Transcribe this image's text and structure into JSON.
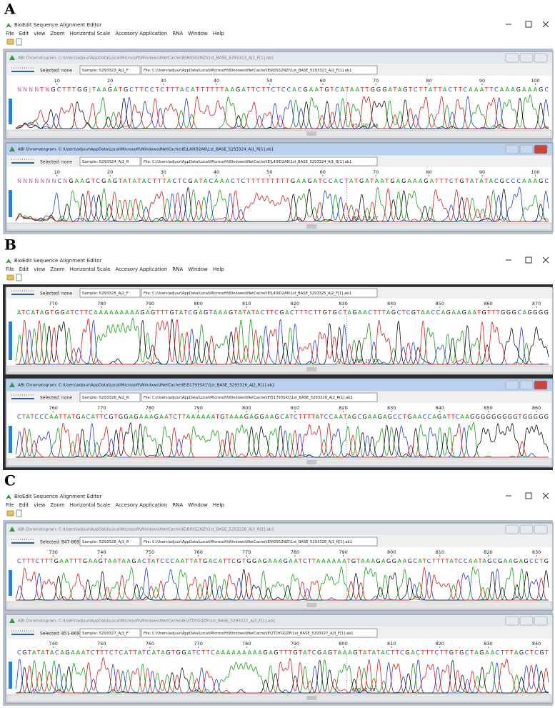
{
  "panels": [
    {
      "label": "A",
      "app_title": "BioEdit Sequence Alignment Editor",
      "menu": [
        "File",
        "Edit",
        "view",
        "Zoom",
        "Horizontal Scale",
        "Accesory Application",
        "RNA",
        "Window",
        "Help"
      ],
      "windows": [
        {
          "title": "ABI Chromatogram: C:\\Users\\adjuur\\AppData\\Local\\Microsoft\\Windows\\INetCache\\IE\\R0S52NZI\\1st_BASE_5293323_Aj1_F[1].ab1",
          "selected": "Selected: none",
          "sample": "Sample: 5293323_Aj1_F",
          "file": "File: C:\\Users\\adjuur\\AppData\\Local\\Microsoft\\Windows\\INetCache\\IE\\R0S52NZI\\1st_BASE_5293323_Aj1_F[1].ab1",
          "positions": [
            10,
            20,
            30,
            40,
            50,
            60,
            70,
            80,
            90,
            100
          ],
          "sequence": "NNNNTNGCTTTGGJTAAGATGCTTCCTCTTTACATTTTTTAAGATTCTTCTCCACGAATGTCATAATTGGGATAGTCTTATTACTTCAAATTCAAAGAAAGC",
          "status": "834_207_86"
        },
        {
          "title": "ABI Chromatogram: C:\\Users\\adjuur\\AppData\\Local\\Microsoft\\Windows\\INetCache\\IE\\L40ID2A6\\1st_BASE_5293324_Aj1_R[1].ab1",
          "selected": "Selected: none",
          "sample": "Sample: 5293324_Aj1_R",
          "file": "File: C:\\Users\\adjuur\\AppData\\Local\\Microsoft\\Windows\\INetCache\\IE\\L40ID2A6\\1st_BASE_5293324_Aj1_R[1].ab1",
          "positions": [
            10,
            20,
            30,
            40,
            50,
            60,
            70,
            80,
            90,
            100
          ],
          "sequence": "NNNNNNNCNGAAGTCGAGTATATACTTTACTCGATACAAACTCTTTTTTTTTGAAGATCCACTATGATAATGAGAAAGATTTCTGTATATACGCCCAAAGC",
          "status": "852_213_67"
        }
      ]
    },
    {
      "label": "B",
      "app_title": "BioEdit Sequence Alignment Editor",
      "menu": [
        "File",
        "Edit",
        "view",
        "Zoom",
        "Horizontal Scale",
        "Accesory Application",
        "RNA",
        "Window",
        "Help"
      ],
      "windows": [
        {
          "selected": "Selected: none",
          "sample": "Sample: 5293325_Aj2_F",
          "file": "File: C:\\Users\\adjuur\\AppData\\Local\\Microsoft\\Windows\\INetCache\\IE\\L40ID2A6\\1st_BASE_5293325_Aj2_F[1].ab1",
          "positions": [
            770,
            780,
            790,
            800,
            810,
            820,
            830,
            840,
            850,
            860,
            870
          ],
          "sequence": "ATCATAGTGGATCTTCAAAAAAAAAGAGTTTGTATCGAGTAAAGTATATACTTCGACTTTCTTGTGCTAGAACTTTAGCTCGTAACCAGAAGAATGTTTGGGCAGGGG",
          "status": "1083_25_97"
        },
        {
          "title": "ABI Chromatogram: C:\\Users\\adjuur\\AppData\\Local\\Microsoft\\Windows\\INetCache\\IE\\51793SX1\\1st_BASE_5293326_Aj2_R[1].ab1",
          "selected": "Selected: none",
          "sample": "Sample: 5293326_Aj2_R",
          "file": "File: C:\\Users\\adjuur\\AppData\\Local\\Microsoft\\Windows\\INetCache\\IE\\51793SX1\\1st_BASE_5293326_Aj2_R[1].ab1",
          "positions": [
            760,
            770,
            780,
            790,
            800,
            810,
            820,
            830,
            840,
            850,
            860
          ],
          "sequence": "CTATCCCAATTATGACATTCGTGGAGAAAGAATCTTAAAAAATGTAAAGAGGAAGCATCTTTTATCCAATAGCGAAGAGCCTGAACCAGATTCAAGGGGGGGGGTGGGGG"
        }
      ]
    },
    {
      "label": "C",
      "app_title": "BioEdit Sequence Alignment Editor",
      "menu": [
        "File",
        "Edit",
        "view",
        "Zoom",
        "Horizontal Scale",
        "Accesory Application",
        "RNA",
        "Window",
        "Help"
      ],
      "windows": [
        {
          "title": "ABI Chromatogram: C:\\Users\\adjuur\\AppData\\Local\\Microsoft\\Windows\\INetCache\\IE\\R0S52NZI\\1st_BASE_5293328_Aj3_R[1].ab1",
          "selected": "Selected: 847-869",
          "sample": "Sample: 5293328_Aj3_R",
          "file": "File: C:\\Users\\adjuur\\AppData\\Local\\Microsoft\\Windows\\INetCache\\IE\\R0S52NZI\\1st_BASE_5293328_Aj3_R[1].ab1",
          "positions": [
            730,
            740,
            750,
            760,
            770,
            780,
            790,
            800,
            810,
            820,
            830
          ],
          "sequence": "CTTTCTTTGAATTTGAAGTAATAAGACTATCCCAATTATGACATTCGTGGAGAAAGAATCTTAAAAAATGTAAAGAGGAAGCATCTTTTATCCAATAGCGAAGAGCCTG"
        },
        {
          "title": "ABI Chromatogram: C:\\Users\\adjuur\\AppData\\Local\\Microsoft\\Windows\\INetCache\\IE\\2TDYGQZF\\1st_BASE_5293327_Aj3_F[1].ab1",
          "selected": "Selected: 851-869",
          "sample": "Sample: 5293327_Aj3_F",
          "file": "File: C:\\Users\\adjuur\\AppData\\Local\\Microsoft\\Windows\\INetCache\\IE\\2TDYGQZF\\1st_BASE_5293327_Aj3_F[1].ab1",
          "positions": [
            740,
            750,
            760,
            770,
            780,
            790,
            800,
            810,
            820,
            830,
            840
          ],
          "sequence": "CGTATATACAGAAATCTTTCTCATTATCATAGTGGATCTTCAAAAAAAAAGAGTTTGTATCGAGTAAAGTATATACTTCGACTTTCTTGTGCTAGAACTTTAGCTCGT",
          "status": "817_52_87"
        }
      ]
    }
  ]
}
